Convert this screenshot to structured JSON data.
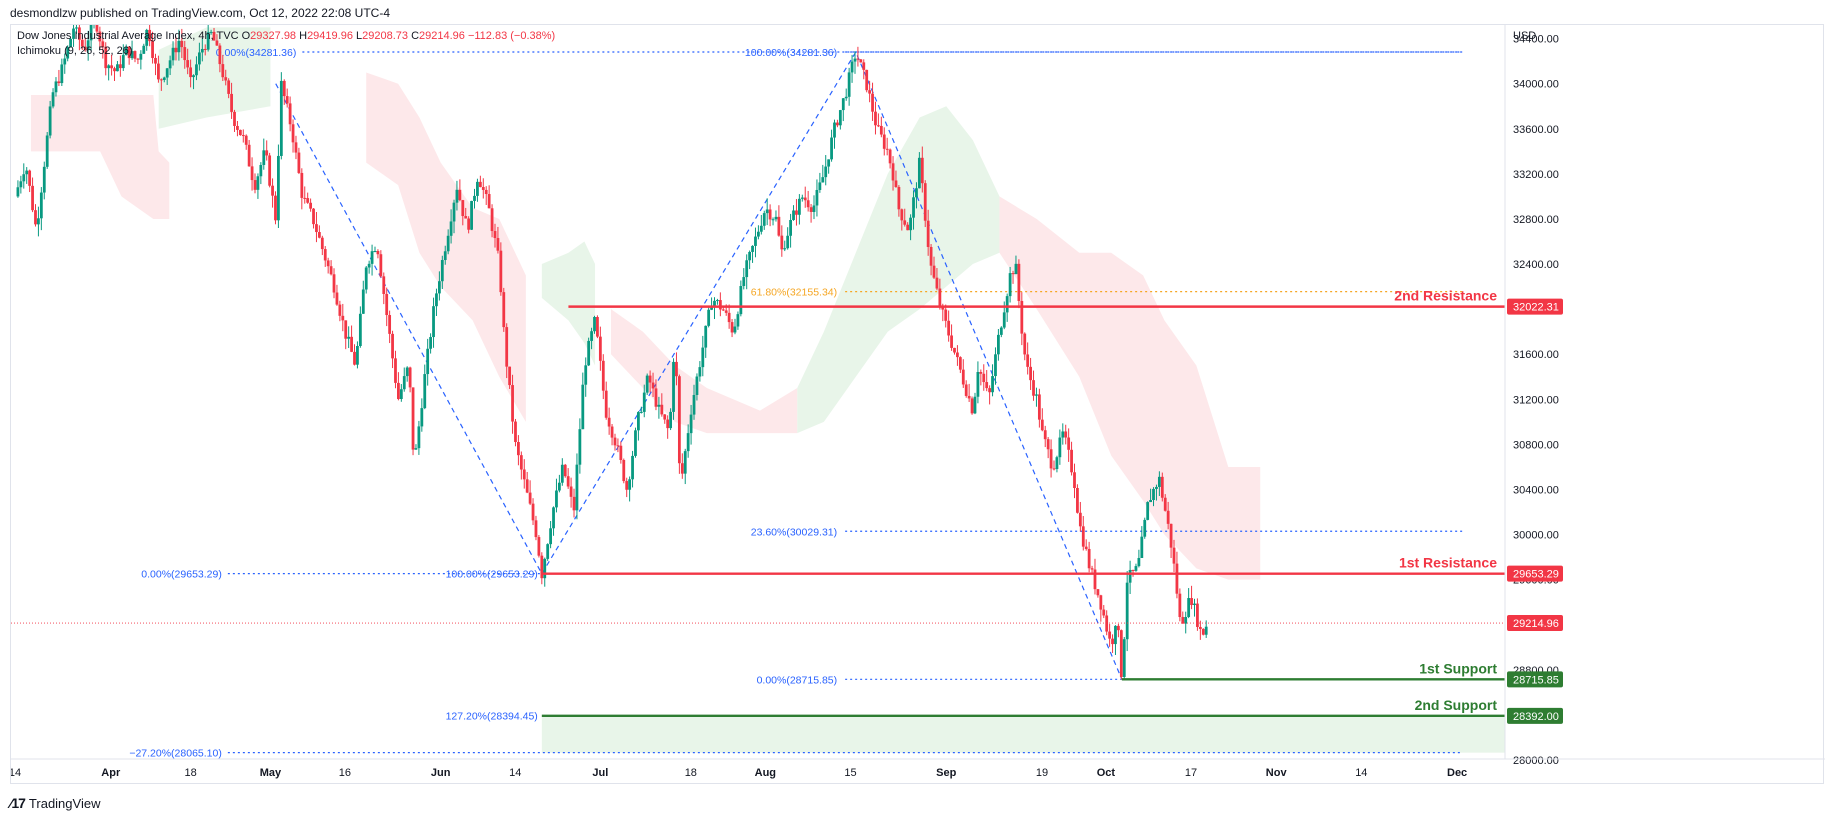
{
  "header": {
    "published": "desmondlzw published on TradingView.com, Oct 12, 2022 22:08 UTC-4"
  },
  "footer": {
    "logo_text": "TradingView"
  },
  "colors": {
    "up": "#089981",
    "down": "#f23645",
    "resistance": "#f23645",
    "support": "#2e7d32",
    "fib_blue": "#2962ff",
    "fib_orange": "#f5a623",
    "cloud_green": "#e8f5e9",
    "cloud_red": "#fde8ea"
  },
  "chart_data": {
    "type": "candlestick",
    "symbol_line": {
      "name": "Dow Jones Industrial Average Index, 4h, TVC",
      "o_label": "O",
      "o": "29327.98",
      "h_label": "H",
      "h": "29419.96",
      "l_label": "L",
      "l": "29208.73",
      "c_label": "C",
      "c": "29214.96",
      "change": "−112.83 (−0.38%)"
    },
    "indicator": "Ichimoku (9, 26, 52, 26)",
    "currency": "USD",
    "ylim": [
      28000,
      34450
    ],
    "y_ticks": [
      "34400.00",
      "34000.00",
      "33600.00",
      "33200.00",
      "32800.00",
      "32400.00",
      "32000.00",
      "31600.00",
      "31200.00",
      "30800.00",
      "30400.00",
      "30000.00",
      "29600.00",
      "29200.00",
      "28800.00",
      "28400.00",
      "28000.00"
    ],
    "x_ticks": [
      {
        "label": "14",
        "t": 0
      },
      {
        "label": "Apr",
        "t": 18
      },
      {
        "label": "18",
        "t": 33
      },
      {
        "label": "May",
        "t": 48
      },
      {
        "label": "16",
        "t": 62
      },
      {
        "label": "Jun",
        "t": 80
      },
      {
        "label": "14",
        "t": 94
      },
      {
        "label": "Jul",
        "t": 110
      },
      {
        "label": "18",
        "t": 127
      },
      {
        "label": "Aug",
        "t": 141
      },
      {
        "label": "15",
        "t": 157
      },
      {
        "label": "Sep",
        "t": 175
      },
      {
        "label": "19",
        "t": 193
      },
      {
        "label": "Oct",
        "t": 205
      },
      {
        "label": "17",
        "t": 221
      },
      {
        "label": "Nov",
        "t": 237
      },
      {
        "label": "14",
        "t": 253
      },
      {
        "label": "Dec",
        "t": 271
      }
    ],
    "price_path": [
      [
        0,
        33000
      ],
      [
        2,
        33300
      ],
      [
        4,
        32700
      ],
      [
        5,
        33100
      ],
      [
        7,
        33900
      ],
      [
        9,
        34150
      ],
      [
        11,
        34500
      ],
      [
        13,
        34300
      ],
      [
        15,
        34600
      ],
      [
        17,
        34200
      ],
      [
        19,
        34100
      ],
      [
        21,
        34300
      ],
      [
        23,
        34200
      ],
      [
        25,
        34500
      ],
      [
        27,
        34000
      ],
      [
        29,
        34200
      ],
      [
        31,
        34400
      ],
      [
        33,
        34000
      ],
      [
        35,
        34300
      ],
      [
        37,
        34450
      ],
      [
        39,
        34100
      ],
      [
        41,
        33700
      ],
      [
        43,
        33500
      ],
      [
        45,
        33100
      ],
      [
        47,
        33400
      ],
      [
        49,
        32800
      ],
      [
        50,
        34000
      ],
      [
        52,
        33600
      ],
      [
        54,
        33000
      ],
      [
        56,
        32800
      ],
      [
        58,
        32500
      ],
      [
        60,
        32200
      ],
      [
        62,
        31800
      ],
      [
        64,
        31500
      ],
      [
        66,
        32400
      ],
      [
        68,
        32600
      ],
      [
        70,
        31900
      ],
      [
        72,
        31200
      ],
      [
        74,
        31500
      ],
      [
        75,
        30600
      ],
      [
        77,
        31400
      ],
      [
        79,
        32100
      ],
      [
        81,
        32600
      ],
      [
        83,
        33100
      ],
      [
        85,
        32700
      ],
      [
        87,
        33200
      ],
      [
        89,
        32900
      ],
      [
        91,
        32400
      ],
      [
        92,
        31700
      ],
      [
        94,
        30800
      ],
      [
        96,
        30400
      ],
      [
        98,
        30000
      ],
      [
        99,
        29653
      ],
      [
        101,
        30200
      ],
      [
        103,
        30600
      ],
      [
        105,
        30200
      ],
      [
        107,
        31500
      ],
      [
        109,
        31900
      ],
      [
        111,
        31100
      ],
      [
        113,
        30800
      ],
      [
        115,
        30400
      ],
      [
        117,
        31000
      ],
      [
        119,
        31400
      ],
      [
        121,
        31100
      ],
      [
        123,
        30900
      ],
      [
        124,
        31800
      ],
      [
        125,
        30400
      ],
      [
        127,
        31100
      ],
      [
        129,
        31600
      ],
      [
        131,
        32100
      ],
      [
        133,
        32000
      ],
      [
        135,
        31800
      ],
      [
        137,
        32300
      ],
      [
        139,
        32600
      ],
      [
        141,
        32900
      ],
      [
        143,
        32800
      ],
      [
        144,
        32500
      ],
      [
        146,
        32800
      ],
      [
        148,
        33000
      ],
      [
        150,
        32900
      ],
      [
        152,
        33200
      ],
      [
        154,
        33600
      ],
      [
        156,
        33900
      ],
      [
        158,
        34281
      ],
      [
        160,
        34000
      ],
      [
        162,
        33600
      ],
      [
        164,
        33400
      ],
      [
        165,
        33200
      ],
      [
        166,
        32900
      ],
      [
        168,
        32700
      ],
      [
        170,
        33300
      ],
      [
        172,
        32400
      ],
      [
        174,
        32000
      ],
      [
        176,
        31700
      ],
      [
        178,
        31400
      ],
      [
        180,
        31100
      ],
      [
        181,
        31500
      ],
      [
        183,
        31200
      ],
      [
        185,
        31800
      ],
      [
        187,
        32300
      ],
      [
        188,
        32400
      ],
      [
        189,
        31900
      ],
      [
        190,
        31500
      ],
      [
        192,
        31200
      ],
      [
        193,
        30900
      ],
      [
        195,
        30600
      ],
      [
        197,
        30900
      ],
      [
        199,
        30500
      ],
      [
        200,
        30100
      ],
      [
        202,
        29700
      ],
      [
        204,
        29400
      ],
      [
        206,
        29000
      ],
      [
        207,
        29300
      ],
      [
        208,
        28716
      ],
      [
        209,
        29600
      ],
      [
        211,
        29700
      ],
      [
        213,
        30300
      ],
      [
        215,
        30500
      ],
      [
        217,
        30000
      ],
      [
        218,
        29650
      ],
      [
        219,
        29200
      ],
      [
        221,
        29450
      ],
      [
        223,
        29100
      ],
      [
        224,
        29214.96
      ]
    ],
    "last_price": 29214.96,
    "ichimoku_cloud": [
      {
        "color": "red",
        "top": [
          [
            3,
            33900
          ],
          [
            26,
            33900
          ],
          [
            27,
            33400
          ],
          [
            29,
            33300
          ],
          [
            29,
            33300
          ]
        ],
        "bot": [
          [
            3,
            33400
          ],
          [
            16,
            33400
          ],
          [
            20,
            33000
          ],
          [
            26,
            32800
          ],
          [
            29,
            32800
          ]
        ]
      },
      {
        "color": "green",
        "top": [
          [
            27,
            34300
          ],
          [
            36,
            34500
          ],
          [
            48,
            34500
          ]
        ],
        "bot": [
          [
            27,
            33600
          ],
          [
            36,
            33700
          ],
          [
            48,
            33800
          ]
        ]
      },
      {
        "color": "red",
        "top": [
          [
            66,
            34100
          ],
          [
            72,
            34000
          ],
          [
            76,
            33700
          ],
          [
            80,
            33300
          ],
          [
            86,
            32900
          ],
          [
            91,
            32800
          ],
          [
            96,
            32300
          ]
        ],
        "bot": [
          [
            66,
            33300
          ],
          [
            72,
            33100
          ],
          [
            76,
            32500
          ],
          [
            80,
            32200
          ],
          [
            86,
            31900
          ],
          [
            91,
            31400
          ],
          [
            96,
            31000
          ]
        ]
      },
      {
        "color": "green",
        "top": [
          [
            99,
            32400
          ],
          [
            104,
            32500
          ],
          [
            107,
            32600
          ],
          [
            109,
            32400
          ]
        ],
        "bot": [
          [
            99,
            32100
          ],
          [
            104,
            31900
          ],
          [
            107,
            31700
          ],
          [
            109,
            31500
          ]
        ]
      },
      {
        "color": "red",
        "top": [
          [
            112,
            32000
          ],
          [
            118,
            31800
          ],
          [
            124,
            31500
          ],
          [
            130,
            31300
          ],
          [
            140,
            31100
          ],
          [
            147,
            31300
          ]
        ],
        "bot": [
          [
            112,
            31600
          ],
          [
            118,
            31300
          ],
          [
            124,
            31000
          ],
          [
            130,
            30900
          ],
          [
            140,
            30900
          ],
          [
            147,
            30900
          ]
        ]
      },
      {
        "color": "green",
        "top": [
          [
            147,
            31300
          ],
          [
            152,
            31800
          ],
          [
            158,
            32500
          ],
          [
            164,
            33200
          ],
          [
            170,
            33700
          ],
          [
            175,
            33800
          ],
          [
            180,
            33500
          ],
          [
            185,
            33000
          ]
        ],
        "bot": [
          [
            147,
            30900
          ],
          [
            152,
            31000
          ],
          [
            158,
            31400
          ],
          [
            164,
            31800
          ],
          [
            170,
            32000
          ],
          [
            175,
            32200
          ],
          [
            180,
            32400
          ],
          [
            185,
            32500
          ]
        ]
      },
      {
        "color": "red",
        "top": [
          [
            185,
            33000
          ],
          [
            192,
            32800
          ],
          [
            200,
            32500
          ],
          [
            206,
            32500
          ],
          [
            212,
            32300
          ],
          [
            216,
            31900
          ],
          [
            222,
            31500
          ],
          [
            228,
            30600
          ],
          [
            234,
            30600
          ]
        ],
        "bot": [
          [
            185,
            32500
          ],
          [
            192,
            32000
          ],
          [
            200,
            31400
          ],
          [
            206,
            30700
          ],
          [
            212,
            30300
          ],
          [
            216,
            30000
          ],
          [
            222,
            29700
          ],
          [
            228,
            29600
          ],
          [
            234,
            29600
          ]
        ]
      }
    ],
    "fib_lines": [
      {
        "label": "0.00%(34281.36)",
        "value": 34281.36,
        "from": 54,
        "to": 272,
        "label_at": "left"
      },
      {
        "label": "100.00%(34281.36)",
        "value": 34281.36,
        "from": 156,
        "to": 272,
        "label_at": "mid"
      },
      {
        "label": "61.80%(32155.34)",
        "value": 32155.34,
        "from": 156,
        "to": 272,
        "label_at": "mid",
        "color": "orange"
      },
      {
        "label": "23.60%(30029.31)",
        "value": 30029.31,
        "from": 156,
        "to": 272,
        "label_at": "mid"
      },
      {
        "label": "0.00%(29653.29)",
        "value": 29653.29,
        "from": 40,
        "to": 99,
        "label_at": "left"
      },
      {
        "label": "100.00%(29653.29)",
        "value": 29653.29,
        "from": 99,
        "to": 99,
        "label_at": "end"
      },
      {
        "label": "0.00%(28715.85)",
        "value": 28715.85,
        "from": 156,
        "to": 208,
        "label_at": "mid"
      },
      {
        "label": "127.20%(28394.45)",
        "value": 28394.45,
        "from": 99,
        "to": 99,
        "label_at": "end"
      },
      {
        "label": "−27.20%(28065.10)",
        "value": 28065.1,
        "from": 40,
        "to": 272,
        "label_at": "left"
      }
    ],
    "zigzag": [
      [
        49,
        34000
      ],
      [
        99,
        29653
      ],
      [
        158,
        34281
      ],
      [
        208,
        28716
      ]
    ],
    "levels": [
      {
        "name": "2nd Resistance",
        "value": 32022.31,
        "label": "32022.31",
        "color": "red",
        "from": 104
      },
      {
        "name": "1st Resistance",
        "value": 29653.29,
        "label": "29653.29",
        "color": "red",
        "from": 99
      },
      {
        "name": "1st Support",
        "value": 28715.85,
        "label": "28715.85",
        "color": "green",
        "from": 208
      },
      {
        "name": "2nd Support",
        "value": 28392.0,
        "label": "28392.00",
        "color": "green",
        "from": 99
      }
    ],
    "support_zone": {
      "top": 28392.0,
      "bottom": 28065.1,
      "from": 99
    }
  }
}
